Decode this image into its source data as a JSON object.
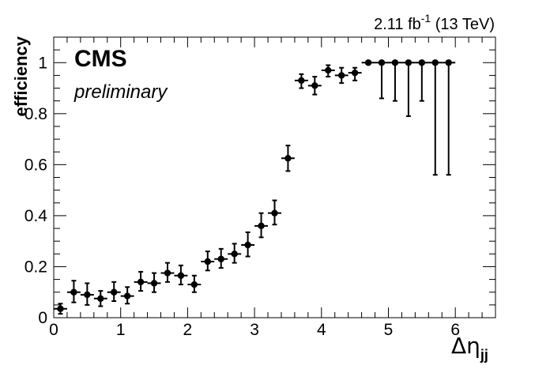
{
  "chart_data": {
    "type": "scatter",
    "lumi_label": "2.11 fb",
    "lumi_exponent": "-1",
    "lumi_energy": " (13 TeV)",
    "experiment": "CMS",
    "status": "preliminary",
    "ylabel": "efficiency",
    "xlabel_symbol": "Δη",
    "xlabel_subscript": "jj",
    "xlim": [
      0,
      6.6
    ],
    "ylim": [
      0,
      1.1
    ],
    "x_ticks": [
      "0",
      "1",
      "2",
      "3",
      "4",
      "5",
      "6"
    ],
    "y_ticks": [
      "0",
      "0.2",
      "0.4",
      "0.6",
      "0.8",
      "1"
    ],
    "grid": false,
    "x_bin_half_width": 0.1,
    "series": [
      {
        "points": [
          {
            "x": 0.1,
            "y": 0.035,
            "err_up": 0.02,
            "err_down": 0.02
          },
          {
            "x": 0.3,
            "y": 0.1,
            "err_up": 0.045,
            "err_down": 0.04
          },
          {
            "x": 0.5,
            "y": 0.09,
            "err_up": 0.045,
            "err_down": 0.04
          },
          {
            "x": 0.7,
            "y": 0.075,
            "err_up": 0.03,
            "err_down": 0.03
          },
          {
            "x": 0.9,
            "y": 0.1,
            "err_up": 0.04,
            "err_down": 0.035
          },
          {
            "x": 1.1,
            "y": 0.085,
            "err_up": 0.035,
            "err_down": 0.03
          },
          {
            "x": 1.3,
            "y": 0.14,
            "err_up": 0.04,
            "err_down": 0.035
          },
          {
            "x": 1.5,
            "y": 0.135,
            "err_up": 0.04,
            "err_down": 0.035
          },
          {
            "x": 1.7,
            "y": 0.175,
            "err_up": 0.04,
            "err_down": 0.035
          },
          {
            "x": 1.9,
            "y": 0.165,
            "err_up": 0.04,
            "err_down": 0.035
          },
          {
            "x": 2.1,
            "y": 0.13,
            "err_up": 0.035,
            "err_down": 0.03
          },
          {
            "x": 2.3,
            "y": 0.22,
            "err_up": 0.04,
            "err_down": 0.035
          },
          {
            "x": 2.5,
            "y": 0.23,
            "err_up": 0.04,
            "err_down": 0.035
          },
          {
            "x": 2.7,
            "y": 0.25,
            "err_up": 0.04,
            "err_down": 0.035
          },
          {
            "x": 2.9,
            "y": 0.285,
            "err_up": 0.05,
            "err_down": 0.045
          },
          {
            "x": 3.1,
            "y": 0.36,
            "err_up": 0.05,
            "err_down": 0.045
          },
          {
            "x": 3.3,
            "y": 0.41,
            "err_up": 0.05,
            "err_down": 0.045
          },
          {
            "x": 3.5,
            "y": 0.625,
            "err_up": 0.05,
            "err_down": 0.05
          },
          {
            "x": 3.7,
            "y": 0.93,
            "err_up": 0.025,
            "err_down": 0.03
          },
          {
            "x": 3.9,
            "y": 0.91,
            "err_up": 0.035,
            "err_down": 0.035
          },
          {
            "x": 4.1,
            "y": 0.97,
            "err_up": 0.02,
            "err_down": 0.025
          },
          {
            "x": 4.3,
            "y": 0.95,
            "err_up": 0.03,
            "err_down": 0.03
          },
          {
            "x": 4.5,
            "y": 0.96,
            "err_up": 0.02,
            "err_down": 0.03
          },
          {
            "x": 4.7,
            "y": 1.0,
            "err_up": 0.0,
            "err_down": 0.0
          },
          {
            "x": 4.9,
            "y": 1.0,
            "err_up": 0.0,
            "err_down": 0.14
          },
          {
            "x": 5.1,
            "y": 1.0,
            "err_up": 0.0,
            "err_down": 0.15
          },
          {
            "x": 5.3,
            "y": 1.0,
            "err_up": 0.0,
            "err_down": 0.21
          },
          {
            "x": 5.5,
            "y": 1.0,
            "err_up": 0.0,
            "err_down": 0.15
          },
          {
            "x": 5.7,
            "y": 1.0,
            "err_up": 0.0,
            "err_down": 0.44
          },
          {
            "x": 5.9,
            "y": 1.0,
            "err_up": 0.0,
            "err_down": 0.44
          }
        ]
      }
    ]
  }
}
